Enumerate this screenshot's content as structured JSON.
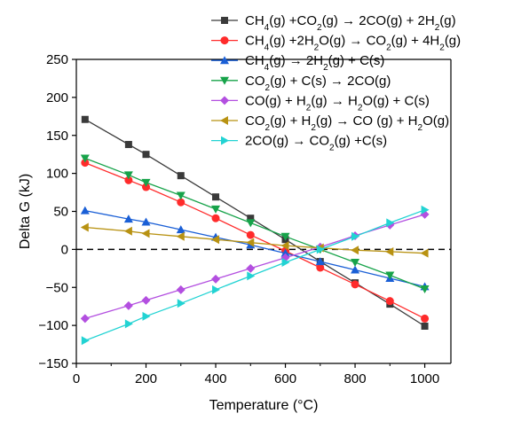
{
  "chart_data": {
    "type": "line",
    "xlabel": "Temperature (°C)",
    "ylabel": "Delta G (kJ)",
    "xlim": [
      0,
      1075
    ],
    "ylim": [
      -150,
      250
    ],
    "xticks": [
      0,
      200,
      400,
      600,
      800,
      1000
    ],
    "yticks": [
      -150,
      -100,
      -50,
      0,
      50,
      100,
      150,
      200,
      250
    ],
    "grid": false,
    "legend_position": "top-right",
    "reference_line": {
      "y": 0,
      "style": "dashed",
      "color": "#000000"
    },
    "series": [
      {
        "name": "CH4(g) +CO2(g) → 2CO(g) + 2H2(g)",
        "color": "#3a3a3a",
        "marker": "square",
        "x": [
          25,
          150,
          200,
          300,
          400,
          500,
          600,
          700,
          800,
          900,
          1000
        ],
        "y": [
          171,
          138,
          125,
          97,
          69,
          41,
          13,
          -16,
          -44,
          -72,
          -101
        ]
      },
      {
        "name": "CH4(g) +2H2O(g) → CO2(g) + 4H2(g)",
        "color": "#ff2b2b",
        "marker": "circle",
        "x": [
          25,
          150,
          200,
          300,
          400,
          500,
          600,
          700,
          800,
          900,
          1000
        ],
        "y": [
          114,
          91,
          82,
          62,
          41,
          19,
          -2,
          -24,
          -46,
          -68,
          -91
        ]
      },
      {
        "name": "CH4(g) → 2H2(g) + C(s)",
        "color": "#1a5fd6",
        "marker": "triangle-up",
        "x": [
          25,
          150,
          200,
          300,
          400,
          500,
          600,
          700,
          800,
          900,
          1000
        ],
        "y": [
          51,
          40,
          36,
          26,
          16,
          6,
          -5,
          -16,
          -27,
          -38,
          -49
        ]
      },
      {
        "name": "CO2(g) + C(s) → 2CO(g)",
        "color": "#17a34a",
        "marker": "triangle-down",
        "x": [
          25,
          150,
          200,
          300,
          400,
          500,
          600,
          700,
          800,
          900,
          1000
        ],
        "y": [
          120,
          98,
          88,
          71,
          53,
          35,
          17,
          0,
          -17,
          -34,
          -52
        ]
      },
      {
        "name": "CO(g) + H2(g) → H2O(g) + C(s)",
        "color": "#b34fe0",
        "marker": "diamond",
        "x": [
          25,
          150,
          200,
          300,
          400,
          500,
          600,
          700,
          800,
          900,
          1000
        ],
        "y": [
          -91,
          -74,
          -67,
          -53,
          -39,
          -25,
          -11,
          3,
          18,
          32,
          46
        ]
      },
      {
        "name": "CO2(g) + H2(g) → CO (g) + H2O(g)",
        "color": "#b89212",
        "marker": "triangle-left",
        "x": [
          25,
          150,
          200,
          300,
          400,
          500,
          600,
          700,
          800,
          900,
          1000
        ],
        "y": [
          29,
          24,
          21,
          17,
          13,
          9,
          5,
          2,
          -1,
          -3,
          -5
        ]
      },
      {
        "name": "2CO(g) → CO2(g) +C(s)",
        "color": "#22d3d3",
        "marker": "triangle-right",
        "x": [
          25,
          150,
          200,
          300,
          400,
          500,
          600,
          700,
          800,
          900,
          1000
        ],
        "y": [
          -120,
          -98,
          -88,
          -71,
          -53,
          -35,
          -17,
          0,
          17,
          35,
          52
        ]
      }
    ],
    "legend_labels": [
      [
        {
          "t": "CH"
        },
        {
          "s": "4"
        },
        {
          "t": "(g) +CO"
        },
        {
          "s": "2"
        },
        {
          "t": "(g) → 2CO(g) + 2H"
        },
        {
          "s": "2"
        },
        {
          "t": "(g)"
        }
      ],
      [
        {
          "t": "CH"
        },
        {
          "s": "4"
        },
        {
          "t": "(g) +2H"
        },
        {
          "s": "2"
        },
        {
          "t": "O(g) → CO"
        },
        {
          "s": "2"
        },
        {
          "t": "(g) + 4H"
        },
        {
          "s": "2"
        },
        {
          "t": "(g)"
        }
      ],
      [
        {
          "t": "CH"
        },
        {
          "s": "4"
        },
        {
          "t": "(g) → 2H"
        },
        {
          "s": "2"
        },
        {
          "t": "(g) + C(s)"
        }
      ],
      [
        {
          "t": "CO"
        },
        {
          "s": "2"
        },
        {
          "t": "(g) + C(s) → 2CO(g)"
        }
      ],
      [
        {
          "t": "CO(g) + H"
        },
        {
          "s": "2"
        },
        {
          "t": "(g) → H"
        },
        {
          "s": "2"
        },
        {
          "t": "O(g) + C(s)"
        }
      ],
      [
        {
          "t": "CO"
        },
        {
          "s": "2"
        },
        {
          "t": "(g) + H"
        },
        {
          "s": "2"
        },
        {
          "t": "(g) → CO (g) + H"
        },
        {
          "s": "2"
        },
        {
          "t": "O(g)"
        }
      ],
      [
        {
          "t": "2CO(g) → CO"
        },
        {
          "s": "2"
        },
        {
          "t": "(g) +C(s)"
        }
      ]
    ]
  }
}
